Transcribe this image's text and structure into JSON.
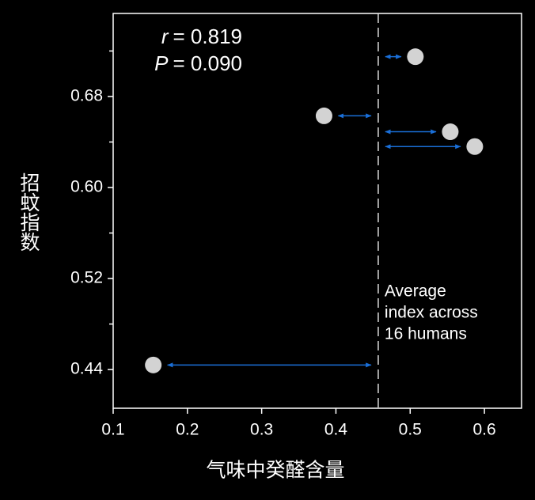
{
  "chart_data": {
    "type": "scatter",
    "xlabel": "气味中癸醛含量",
    "ylabel": "招蚊指数",
    "x": [
      0.154,
      0.384,
      0.507,
      0.554,
      0.587
    ],
    "series": [
      {
        "color": "#d3d3d3",
        "values": [
          0.444,
          0.663,
          0.715,
          0.649,
          0.636
        ]
      }
    ],
    "xlim": [
      0.1,
      0.65
    ],
    "ylim": [
      0.406,
      0.753
    ],
    "xticks": [
      0.1,
      0.2,
      0.3,
      0.4,
      0.5,
      0.6
    ],
    "yticks": [
      {
        "value": 0.44,
        "label": "0.44"
      },
      {
        "value": 0.52,
        "label": "0.52"
      },
      {
        "value": 0.6,
        "label": "0.60"
      },
      {
        "value": 0.68,
        "label": "0.68"
      }
    ],
    "minor_yticks": [
      0.48,
      0.56,
      0.64,
      0.72
    ],
    "average_x": 0.457,
    "average_note": [
      "Average",
      "index across",
      "16 humans"
    ],
    "arrow_color": "#1a6fd8",
    "stats": [
      {
        "symbol": "r",
        "text": "= 0.819"
      },
      {
        "symbol": "P",
        "text": "= 0.090"
      }
    ]
  }
}
